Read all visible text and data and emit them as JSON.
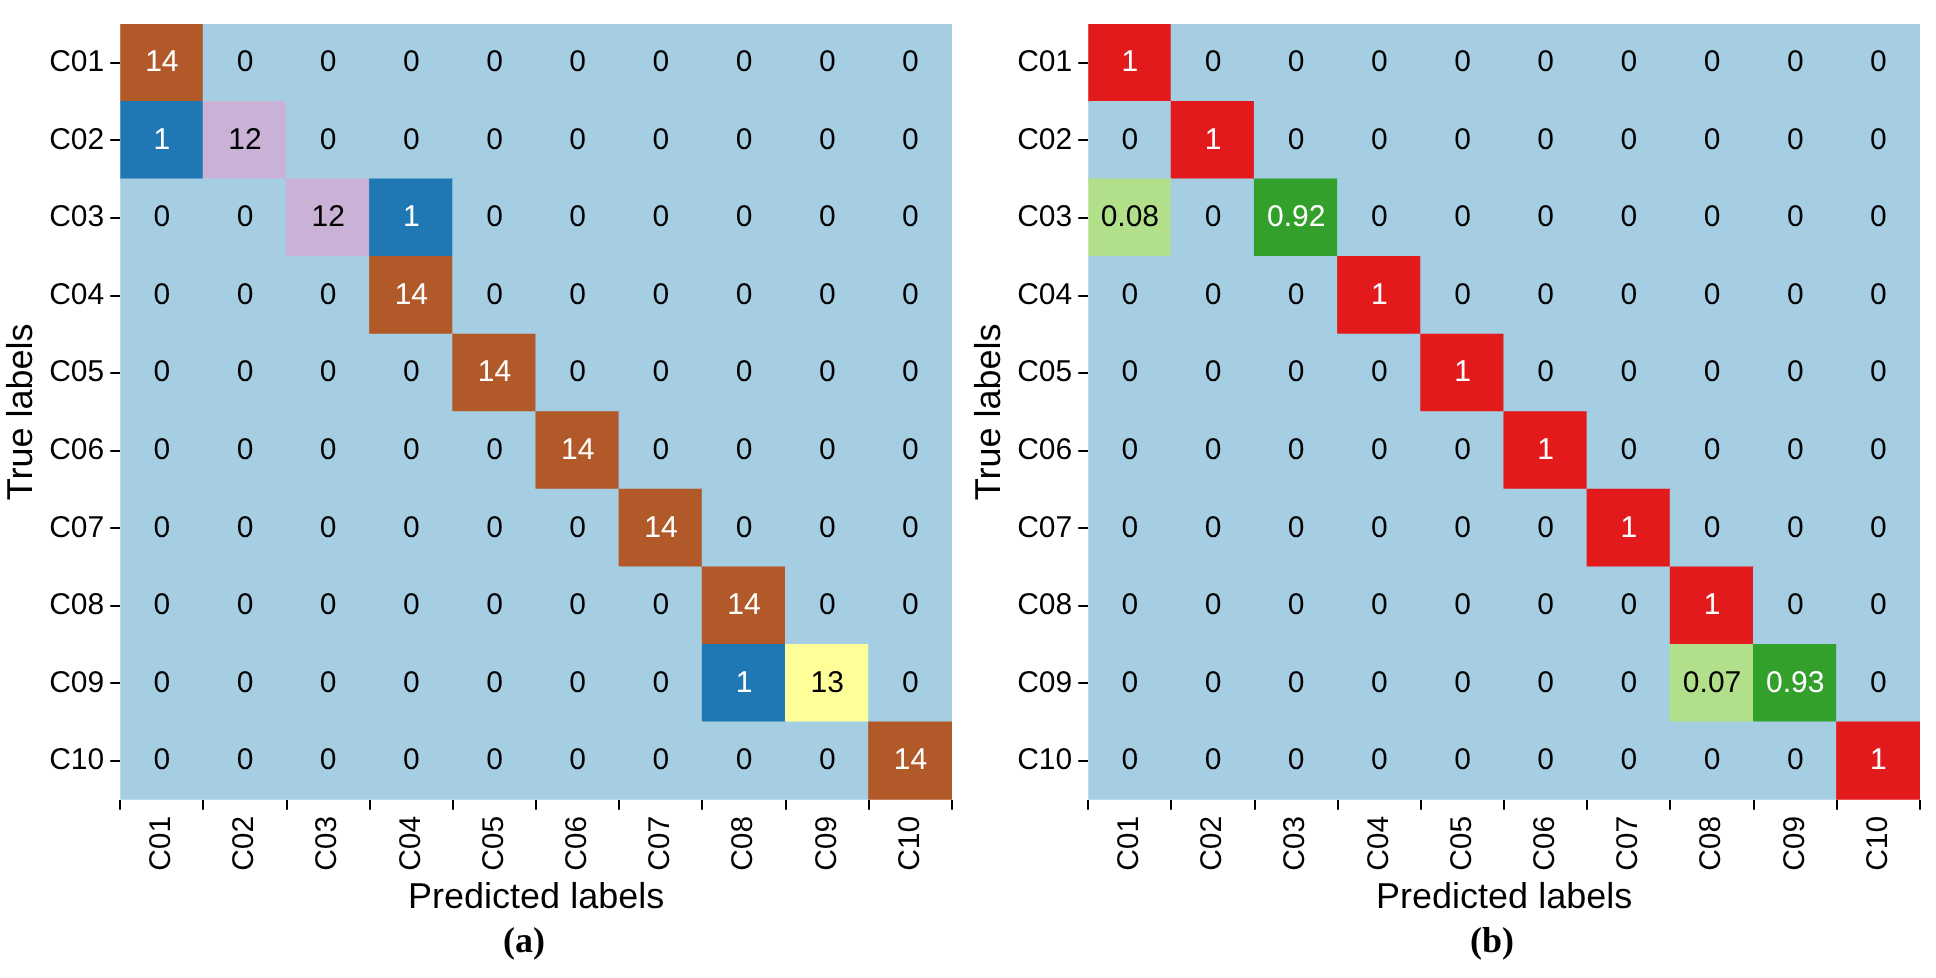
{
  "chart_data": [
    {
      "type": "heatmap",
      "xlabel": "Predicted labels",
      "ylabel": "True labels",
      "annotations": [
        "(a)"
      ],
      "data_labels": true,
      "categories": [
        "C01",
        "C02",
        "C03",
        "C04",
        "C05",
        "C06",
        "C07",
        "C08",
        "C09",
        "C10"
      ],
      "y_categories": [
        "C01",
        "C02",
        "C03",
        "C04",
        "C05",
        "C06",
        "C07",
        "C08",
        "C09",
        "C10"
      ],
      "cells": [
        [
          14,
          0,
          0,
          0,
          0,
          0,
          0,
          0,
          0,
          0
        ],
        [
          1,
          12,
          0,
          0,
          0,
          0,
          0,
          0,
          0,
          0
        ],
        [
          0,
          0,
          12,
          1,
          0,
          0,
          0,
          0,
          0,
          0
        ],
        [
          0,
          0,
          0,
          14,
          0,
          0,
          0,
          0,
          0,
          0
        ],
        [
          0,
          0,
          0,
          0,
          14,
          0,
          0,
          0,
          0,
          0
        ],
        [
          0,
          0,
          0,
          0,
          0,
          14,
          0,
          0,
          0,
          0
        ],
        [
          0,
          0,
          0,
          0,
          0,
          0,
          14,
          0,
          0,
          0
        ],
        [
          0,
          0,
          0,
          0,
          0,
          0,
          0,
          14,
          0,
          0
        ],
        [
          0,
          0,
          0,
          0,
          0,
          0,
          0,
          1,
          13,
          0
        ],
        [
          0,
          0,
          0,
          0,
          0,
          0,
          0,
          0,
          0,
          14
        ]
      ],
      "colors": [
        [
          "#b15928",
          "#a6cee3",
          "#a6cee3",
          "#a6cee3",
          "#a6cee3",
          "#a6cee3",
          "#a6cee3",
          "#a6cee3",
          "#a6cee3",
          "#a6cee3"
        ],
        [
          "#1f78b4",
          "#cab2d6",
          "#a6cee3",
          "#a6cee3",
          "#a6cee3",
          "#a6cee3",
          "#a6cee3",
          "#a6cee3",
          "#a6cee3",
          "#a6cee3"
        ],
        [
          "#a6cee3",
          "#a6cee3",
          "#cab2d6",
          "#1f78b4",
          "#a6cee3",
          "#a6cee3",
          "#a6cee3",
          "#a6cee3",
          "#a6cee3",
          "#a6cee3"
        ],
        [
          "#a6cee3",
          "#a6cee3",
          "#a6cee3",
          "#b15928",
          "#a6cee3",
          "#a6cee3",
          "#a6cee3",
          "#a6cee3",
          "#a6cee3",
          "#a6cee3"
        ],
        [
          "#a6cee3",
          "#a6cee3",
          "#a6cee3",
          "#a6cee3",
          "#b15928",
          "#a6cee3",
          "#a6cee3",
          "#a6cee3",
          "#a6cee3",
          "#a6cee3"
        ],
        [
          "#a6cee3",
          "#a6cee3",
          "#a6cee3",
          "#a6cee3",
          "#a6cee3",
          "#b15928",
          "#a6cee3",
          "#a6cee3",
          "#a6cee3",
          "#a6cee3"
        ],
        [
          "#a6cee3",
          "#a6cee3",
          "#a6cee3",
          "#a6cee3",
          "#a6cee3",
          "#a6cee3",
          "#b15928",
          "#a6cee3",
          "#a6cee3",
          "#a6cee3"
        ],
        [
          "#a6cee3",
          "#a6cee3",
          "#a6cee3",
          "#a6cee3",
          "#a6cee3",
          "#a6cee3",
          "#a6cee3",
          "#b15928",
          "#a6cee3",
          "#a6cee3"
        ],
        [
          "#a6cee3",
          "#a6cee3",
          "#a6cee3",
          "#a6cee3",
          "#a6cee3",
          "#a6cee3",
          "#a6cee3",
          "#1f78b4",
          "#ffff99",
          "#a6cee3"
        ],
        [
          "#a6cee3",
          "#a6cee3",
          "#a6cee3",
          "#a6cee3",
          "#a6cee3",
          "#a6cee3",
          "#a6cee3",
          "#a6cee3",
          "#a6cee3",
          "#b15928"
        ]
      ]
    },
    {
      "type": "heatmap",
      "xlabel": "Predicted labels",
      "ylabel": "True labels",
      "annotations": [
        "(b)"
      ],
      "data_labels": true,
      "categories": [
        "C01",
        "C02",
        "C03",
        "C04",
        "C05",
        "C06",
        "C07",
        "C08",
        "C09",
        "C10"
      ],
      "y_categories": [
        "C01",
        "C02",
        "C03",
        "C04",
        "C05",
        "C06",
        "C07",
        "C08",
        "C09",
        "C10"
      ],
      "cells": [
        [
          1,
          0,
          0,
          0,
          0,
          0,
          0,
          0,
          0,
          0
        ],
        [
          0,
          1,
          0,
          0,
          0,
          0,
          0,
          0,
          0,
          0
        ],
        [
          0.08,
          0,
          0.92,
          0,
          0,
          0,
          0,
          0,
          0,
          0
        ],
        [
          0,
          0,
          0,
          1,
          0,
          0,
          0,
          0,
          0,
          0
        ],
        [
          0,
          0,
          0,
          0,
          1,
          0,
          0,
          0,
          0,
          0
        ],
        [
          0,
          0,
          0,
          0,
          0,
          1,
          0,
          0,
          0,
          0
        ],
        [
          0,
          0,
          0,
          0,
          0,
          0,
          1,
          0,
          0,
          0
        ],
        [
          0,
          0,
          0,
          0,
          0,
          0,
          0,
          1,
          0,
          0
        ],
        [
          0,
          0,
          0,
          0,
          0,
          0,
          0,
          0.07,
          0.93,
          0
        ],
        [
          0,
          0,
          0,
          0,
          0,
          0,
          0,
          0,
          0,
          1
        ]
      ],
      "colors": [
        [
          "#e31a1c",
          "#a6cee3",
          "#a6cee3",
          "#a6cee3",
          "#a6cee3",
          "#a6cee3",
          "#a6cee3",
          "#a6cee3",
          "#a6cee3",
          "#a6cee3"
        ],
        [
          "#a6cee3",
          "#e31a1c",
          "#a6cee3",
          "#a6cee3",
          "#a6cee3",
          "#a6cee3",
          "#a6cee3",
          "#a6cee3",
          "#a6cee3",
          "#a6cee3"
        ],
        [
          "#b2df8a",
          "#a6cee3",
          "#33a02c",
          "#a6cee3",
          "#a6cee3",
          "#a6cee3",
          "#a6cee3",
          "#a6cee3",
          "#a6cee3",
          "#a6cee3"
        ],
        [
          "#a6cee3",
          "#a6cee3",
          "#a6cee3",
          "#e31a1c",
          "#a6cee3",
          "#a6cee3",
          "#a6cee3",
          "#a6cee3",
          "#a6cee3",
          "#a6cee3"
        ],
        [
          "#a6cee3",
          "#a6cee3",
          "#a6cee3",
          "#a6cee3",
          "#e31a1c",
          "#a6cee3",
          "#a6cee3",
          "#a6cee3",
          "#a6cee3",
          "#a6cee3"
        ],
        [
          "#a6cee3",
          "#a6cee3",
          "#a6cee3",
          "#a6cee3",
          "#a6cee3",
          "#e31a1c",
          "#a6cee3",
          "#a6cee3",
          "#a6cee3",
          "#a6cee3"
        ],
        [
          "#a6cee3",
          "#a6cee3",
          "#a6cee3",
          "#a6cee3",
          "#a6cee3",
          "#a6cee3",
          "#e31a1c",
          "#a6cee3",
          "#a6cee3",
          "#a6cee3"
        ],
        [
          "#a6cee3",
          "#a6cee3",
          "#a6cee3",
          "#a6cee3",
          "#a6cee3",
          "#a6cee3",
          "#a6cee3",
          "#e31a1c",
          "#a6cee3",
          "#a6cee3"
        ],
        [
          "#a6cee3",
          "#a6cee3",
          "#a6cee3",
          "#a6cee3",
          "#a6cee3",
          "#a6cee3",
          "#a6cee3",
          "#b2df8a",
          "#33a02c",
          "#a6cee3"
        ],
        [
          "#a6cee3",
          "#a6cee3",
          "#a6cee3",
          "#a6cee3",
          "#a6cee3",
          "#a6cee3",
          "#a6cee3",
          "#a6cee3",
          "#a6cee3",
          "#e31a1c"
        ]
      ]
    }
  ]
}
